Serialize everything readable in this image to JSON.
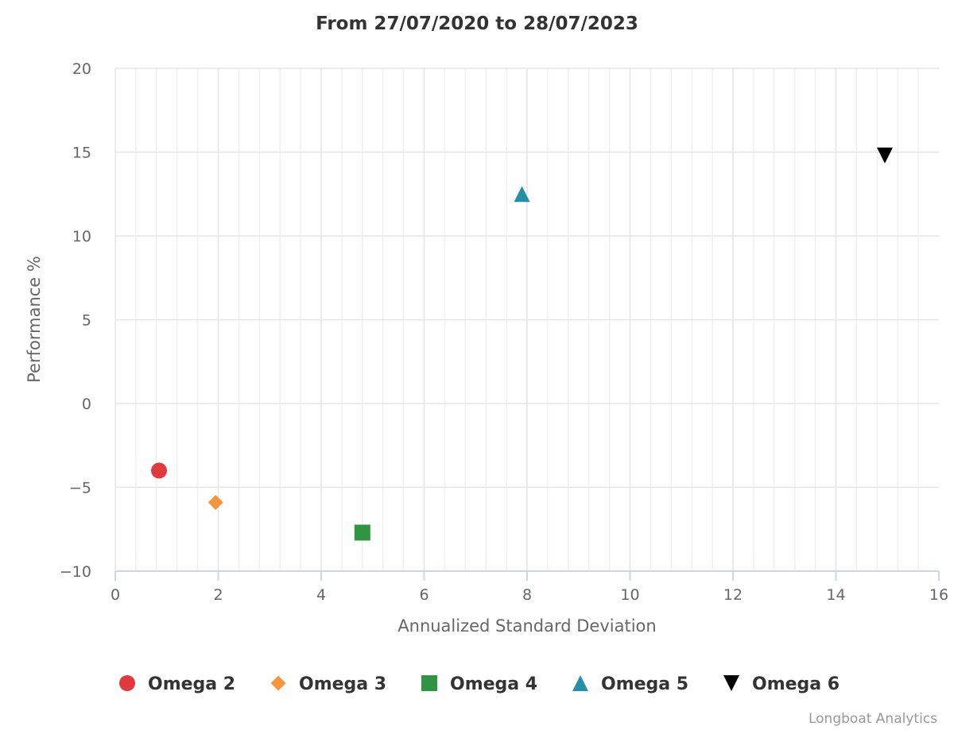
{
  "chart_data": {
    "type": "scatter",
    "title": "From 27/07/2020 to 28/07/2023",
    "xlabel": "Annualized Standard Deviation",
    "ylabel": "Performance %",
    "xlim": [
      0,
      16
    ],
    "ylim": [
      -10,
      20
    ],
    "x_ticks": [
      "0",
      "2",
      "4",
      "6",
      "8",
      "10",
      "12",
      "14",
      "16"
    ],
    "y_ticks": [
      "20",
      "15",
      "10",
      "5",
      "0",
      "−5",
      "−10"
    ],
    "grid": true,
    "legend_position": "bottom",
    "series": [
      {
        "name": "Omega 2",
        "x": 0.85,
        "y": -4.0,
        "marker": "circle",
        "color": "#e03a3e"
      },
      {
        "name": "Omega 3",
        "x": 1.95,
        "y": -5.9,
        "marker": "diamond",
        "color": "#f7953a"
      },
      {
        "name": "Omega 4",
        "x": 4.8,
        "y": -7.7,
        "marker": "square",
        "color": "#2f9542"
      },
      {
        "name": "Omega 5",
        "x": 7.9,
        "y": 12.5,
        "marker": "triangle",
        "color": "#2390a9"
      },
      {
        "name": "Omega 6",
        "x": 14.95,
        "y": 14.8,
        "marker": "triangle-down",
        "color": "#000000"
      }
    ]
  },
  "credit": "Longboat Analytics"
}
